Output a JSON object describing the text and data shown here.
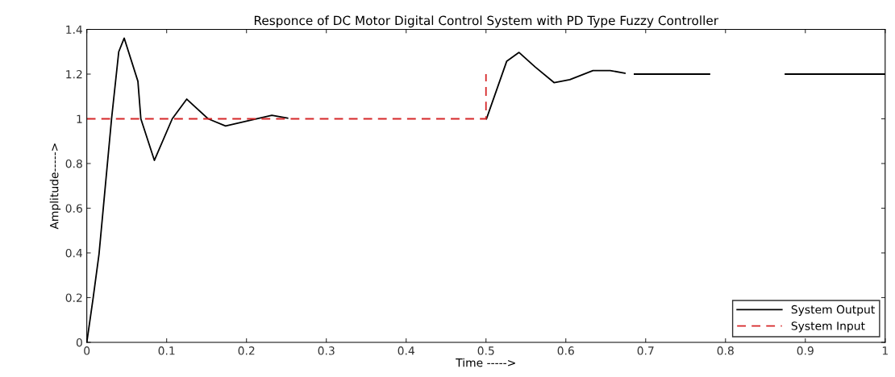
{
  "chart_data": {
    "type": "line",
    "title": "Responce of DC Motor Digital Control System with PD Type Fuzzy Controller",
    "xlabel": "Time ----->",
    "ylabel": "Amplitude----->",
    "xlim": [
      0,
      1
    ],
    "ylim": [
      0,
      1.4
    ],
    "xticks": [
      0,
      0.1,
      0.2,
      0.3,
      0.4,
      0.5,
      0.6,
      0.7,
      0.8,
      0.9,
      1
    ],
    "yticks": [
      0,
      0.2,
      0.4,
      0.6,
      0.8,
      1,
      1.2,
      1.4
    ],
    "grid": false,
    "legend": "bottom right",
    "marker": "none",
    "series": [
      {
        "name": "System Output",
        "color": "#000000",
        "line_style": "solid",
        "x": [
          0,
          0.008,
          0.0153,
          0.031,
          0.04,
          0.0468,
          0.064,
          0.0677,
          0.0846,
          0.107,
          0.1252,
          0.152,
          0.1738,
          0.2318,
          0.2515,
          0.26,
          0.5006,
          0.526,
          0.5414,
          0.5616,
          0.5853,
          0.605,
          0.634,
          0.6556,
          0.674,
          0.68,
          0.686,
          0.78,
          0.83,
          0.875,
          1
        ],
        "values": [
          0,
          0.2,
          0.395,
          1.0,
          1.3,
          1.361,
          1.168,
          1.0,
          0.814,
          1.0,
          1.088,
          1.0,
          0.968,
          1.016,
          1.003,
          null,
          1.0,
          1.258,
          1.297,
          1.232,
          1.162,
          1.175,
          1.216,
          1.216,
          1.204,
          null,
          1.2,
          1.2,
          null,
          1.2,
          1.2
        ]
      },
      {
        "name": "System Input",
        "color": "#d62728",
        "line_style": "dashed",
        "x": [
          0,
          0.5,
          0.5
        ],
        "values": [
          1,
          1,
          1.2
        ]
      }
    ]
  }
}
